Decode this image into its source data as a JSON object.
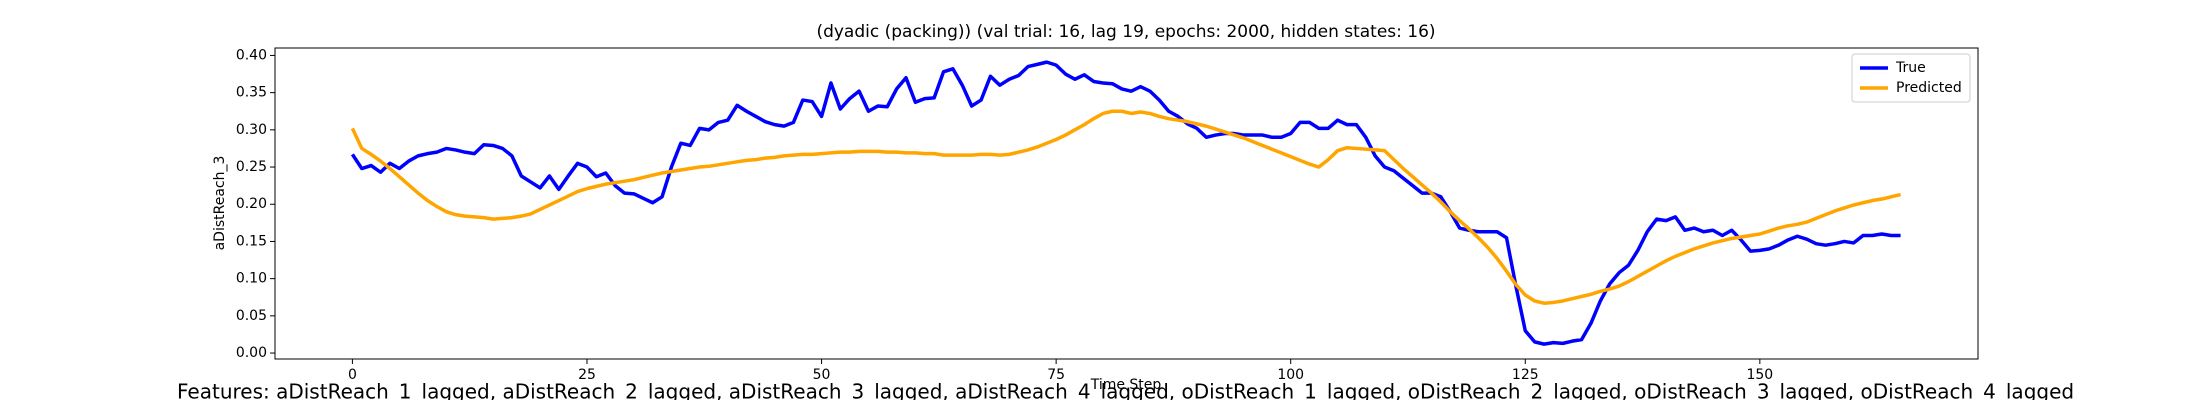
{
  "chart_data": {
    "type": "line",
    "title": "(dyadic (packing)) (val trial: 16, lag 19, epochs: 2000, hidden states: 16)",
    "xlabel": "Time Step",
    "ylabel": "aDistReach_3",
    "footer": "Features: aDistReach_1_lagged, aDistReach_2_lagged, aDistReach_3_lagged, aDistReach_4_lagged, oDistReach_1_lagged, oDistReach_2_lagged, oDistReach_3_lagged, oDistReach_4_lagged",
    "legend_position": "upper right",
    "grid": false,
    "xlim": [
      -8.25,
      173.25
    ],
    "xticks": [
      0,
      25,
      50,
      75,
      100,
      125,
      150
    ],
    "ylim": [
      -0.008,
      0.41
    ],
    "yticks": [
      {
        "value": 0,
        "label": "0.00"
      },
      {
        "value": 0.05,
        "label": "0.05"
      },
      {
        "value": 0.1,
        "label": "0.10"
      },
      {
        "value": 0.15,
        "label": "0.15"
      },
      {
        "value": 0.2,
        "label": "0.20"
      },
      {
        "value": 0.25,
        "label": "0.25"
      },
      {
        "value": 0.3,
        "label": "0.30"
      },
      {
        "value": 0.35,
        "label": "0.35"
      },
      {
        "value": 0.4,
        "label": "0.40"
      }
    ],
    "x": [
      0,
      1,
      2,
      3,
      4,
      5,
      6,
      7,
      8,
      9,
      10,
      11,
      12,
      13,
      14,
      15,
      16,
      17,
      18,
      19,
      20,
      21,
      22,
      23,
      24,
      25,
      26,
      27,
      28,
      29,
      30,
      31,
      32,
      33,
      34,
      35,
      36,
      37,
      38,
      39,
      40,
      41,
      42,
      43,
      44,
      45,
      46,
      47,
      48,
      49,
      50,
      51,
      52,
      53,
      54,
      55,
      56,
      57,
      58,
      59,
      60,
      61,
      62,
      63,
      64,
      65,
      66,
      67,
      68,
      69,
      70,
      71,
      72,
      73,
      74,
      75,
      76,
      77,
      78,
      79,
      80,
      81,
      82,
      83,
      84,
      85,
      86,
      87,
      88,
      89,
      90,
      91,
      92,
      93,
      94,
      95,
      96,
      97,
      98,
      99,
      100,
      101,
      102,
      103,
      104,
      105,
      106,
      107,
      108,
      109,
      110,
      111,
      112,
      113,
      114,
      115,
      116,
      117,
      118,
      119,
      120,
      121,
      122,
      123,
      124,
      125,
      126,
      127,
      128,
      129,
      130,
      131,
      132,
      133,
      134,
      135,
      136,
      137,
      138,
      139,
      140,
      141,
      142,
      143,
      144,
      145,
      146,
      147,
      148,
      149,
      150,
      151,
      152,
      153,
      154,
      155,
      156,
      157,
      158,
      159,
      160,
      161,
      162,
      163,
      164,
      165
    ],
    "series": [
      {
        "name": "True",
        "color": "#0000ff",
        "values": [
          0.267,
          0.248,
          0.252,
          0.243,
          0.255,
          0.248,
          0.258,
          0.265,
          0.268,
          0.27,
          0.275,
          0.273,
          0.27,
          0.268,
          0.28,
          0.279,
          0.275,
          0.265,
          0.238,
          0.23,
          0.222,
          0.238,
          0.22,
          0.238,
          0.255,
          0.25,
          0.237,
          0.242,
          0.225,
          0.215,
          0.214,
          0.208,
          0.202,
          0.21,
          0.25,
          0.282,
          0.279,
          0.302,
          0.3,
          0.31,
          0.313,
          0.333,
          0.325,
          0.318,
          0.311,
          0.307,
          0.305,
          0.31,
          0.34,
          0.338,
          0.318,
          0.363,
          0.328,
          0.342,
          0.352,
          0.325,
          0.332,
          0.331,
          0.355,
          0.37,
          0.337,
          0.342,
          0.343,
          0.378,
          0.382,
          0.36,
          0.332,
          0.34,
          0.372,
          0.36,
          0.368,
          0.373,
          0.385,
          0.388,
          0.391,
          0.387,
          0.375,
          0.368,
          0.374,
          0.365,
          0.363,
          0.362,
          0.355,
          0.352,
          0.358,
          0.352,
          0.34,
          0.325,
          0.318,
          0.308,
          0.302,
          0.29,
          0.293,
          0.295,
          0.295,
          0.293,
          0.293,
          0.293,
          0.29,
          0.29,
          0.295,
          0.31,
          0.31,
          0.302,
          0.302,
          0.313,
          0.307,
          0.307,
          0.29,
          0.265,
          0.25,
          0.245,
          0.235,
          0.225,
          0.215,
          0.215,
          0.21,
          0.19,
          0.168,
          0.165,
          0.163,
          0.163,
          0.163,
          0.155,
          0.09,
          0.03,
          0.015,
          0.012,
          0.014,
          0.013,
          0.016,
          0.018,
          0.04,
          0.07,
          0.093,
          0.108,
          0.118,
          0.138,
          0.163,
          0.18,
          0.178,
          0.183,
          0.165,
          0.168,
          0.163,
          0.165,
          0.158,
          0.165,
          0.152,
          0.137,
          0.138,
          0.14,
          0.145,
          0.152,
          0.157,
          0.153,
          0.147,
          0.145,
          0.147,
          0.15,
          0.148,
          0.158,
          0.158,
          0.16,
          0.158,
          0.158
        ]
      },
      {
        "name": "Predicted",
        "color": "#ffa500",
        "values": [
          0.302,
          0.275,
          0.267,
          0.258,
          0.248,
          0.237,
          0.226,
          0.215,
          0.205,
          0.197,
          0.19,
          0.186,
          0.184,
          0.183,
          0.182,
          0.18,
          0.181,
          0.182,
          0.184,
          0.187,
          0.193,
          0.199,
          0.205,
          0.211,
          0.217,
          0.221,
          0.224,
          0.227,
          0.229,
          0.231,
          0.233,
          0.236,
          0.239,
          0.242,
          0.244,
          0.246,
          0.248,
          0.25,
          0.251,
          0.253,
          0.255,
          0.257,
          0.259,
          0.26,
          0.262,
          0.263,
          0.265,
          0.266,
          0.267,
          0.267,
          0.268,
          0.269,
          0.27,
          0.27,
          0.271,
          0.271,
          0.271,
          0.27,
          0.27,
          0.269,
          0.269,
          0.268,
          0.268,
          0.266,
          0.266,
          0.266,
          0.266,
          0.267,
          0.267,
          0.266,
          0.267,
          0.27,
          0.273,
          0.277,
          0.282,
          0.287,
          0.293,
          0.3,
          0.307,
          0.315,
          0.322,
          0.325,
          0.325,
          0.322,
          0.324,
          0.322,
          0.318,
          0.315,
          0.313,
          0.311,
          0.308,
          0.305,
          0.301,
          0.297,
          0.293,
          0.289,
          0.284,
          0.279,
          0.274,
          0.269,
          0.264,
          0.259,
          0.254,
          0.25,
          0.26,
          0.272,
          0.276,
          0.275,
          0.274,
          0.273,
          0.272,
          0.26,
          0.248,
          0.237,
          0.226,
          0.215,
          0.203,
          0.19,
          0.178,
          0.167,
          0.155,
          0.142,
          0.127,
          0.11,
          0.092,
          0.078,
          0.07,
          0.067,
          0.068,
          0.07,
          0.073,
          0.076,
          0.079,
          0.083,
          0.086,
          0.09,
          0.096,
          0.103,
          0.11,
          0.117,
          0.124,
          0.13,
          0.135,
          0.14,
          0.144,
          0.148,
          0.151,
          0.154,
          0.156,
          0.158,
          0.16,
          0.164,
          0.168,
          0.171,
          0.173,
          0.176,
          0.181,
          0.186,
          0.191,
          0.195,
          0.199,
          0.202,
          0.205,
          0.207,
          0.21,
          0.213
        ]
      }
    ]
  }
}
